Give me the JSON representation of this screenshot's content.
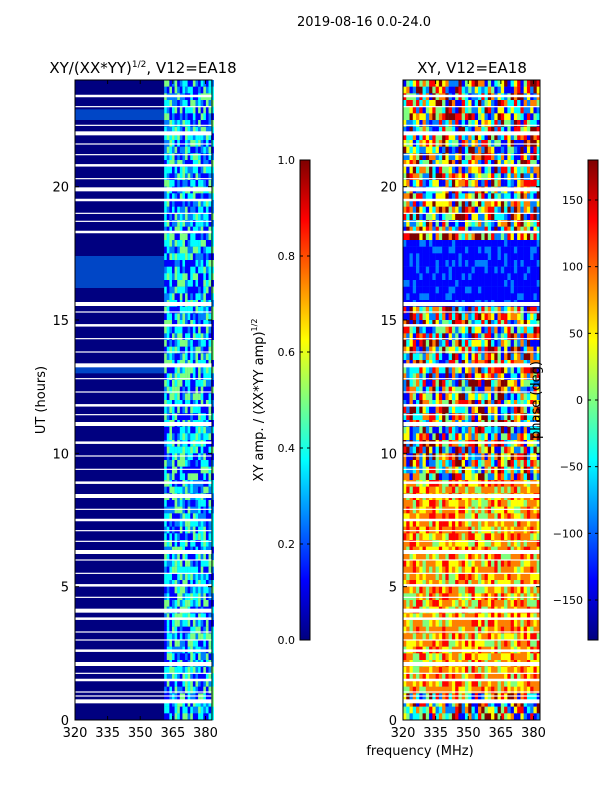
{
  "figure": {
    "suptitle": "2019-08-16 0.0-24.0"
  },
  "colors": {
    "background": "#000080",
    "gap": "#ffffff",
    "axis": "#000000",
    "jet": [
      "#00007f",
      "#0000ff",
      "#007fff",
      "#00ffff",
      "#7fff7f",
      "#ffff00",
      "#ff7f00",
      "#ff0000",
      "#7f0000"
    ]
  },
  "chart_data": [
    {
      "type": "heatmap",
      "title_main": "XY/(XX*YY)",
      "title_sup": "1/2",
      "title_rest": ", V12=EA18",
      "xlabel": "",
      "ylabel": "UT (hours)",
      "xlim": [
        320,
        383
      ],
      "ylim": [
        0,
        24
      ],
      "xticks": [
        320,
        335,
        350,
        365,
        380
      ],
      "yticks": [
        0,
        5,
        10,
        15,
        20
      ],
      "colorbar": {
        "label_main": "XY amp. / (XX*YY amp)",
        "label_sup": "1/2",
        "range": [
          0.0,
          1.0
        ],
        "ticks": [
          0.0,
          0.2,
          0.4,
          0.6,
          0.8,
          1.0
        ],
        "tick_labels": [
          "0.0",
          "0.2",
          "0.4",
          "0.6",
          "0.8",
          "1.0"
        ]
      }
    },
    {
      "type": "heatmap",
      "title": "XY, V12=EA18",
      "xlabel": "frequency (MHz)",
      "ylabel": "",
      "xlim": [
        320,
        383
      ],
      "ylim": [
        0,
        24
      ],
      "xticks": [
        320,
        335,
        350,
        365,
        380
      ],
      "yticks": [
        0,
        5,
        10,
        15,
        20
      ],
      "colorbar": {
        "label": "phase (deg)",
        "range": [
          -180,
          180
        ],
        "ticks": [
          -150,
          -100,
          -50,
          0,
          50,
          100,
          150
        ],
        "tick_labels": [
          "−150",
          "−100",
          "−50",
          "0",
          "50",
          "100",
          "150"
        ]
      }
    }
  ]
}
